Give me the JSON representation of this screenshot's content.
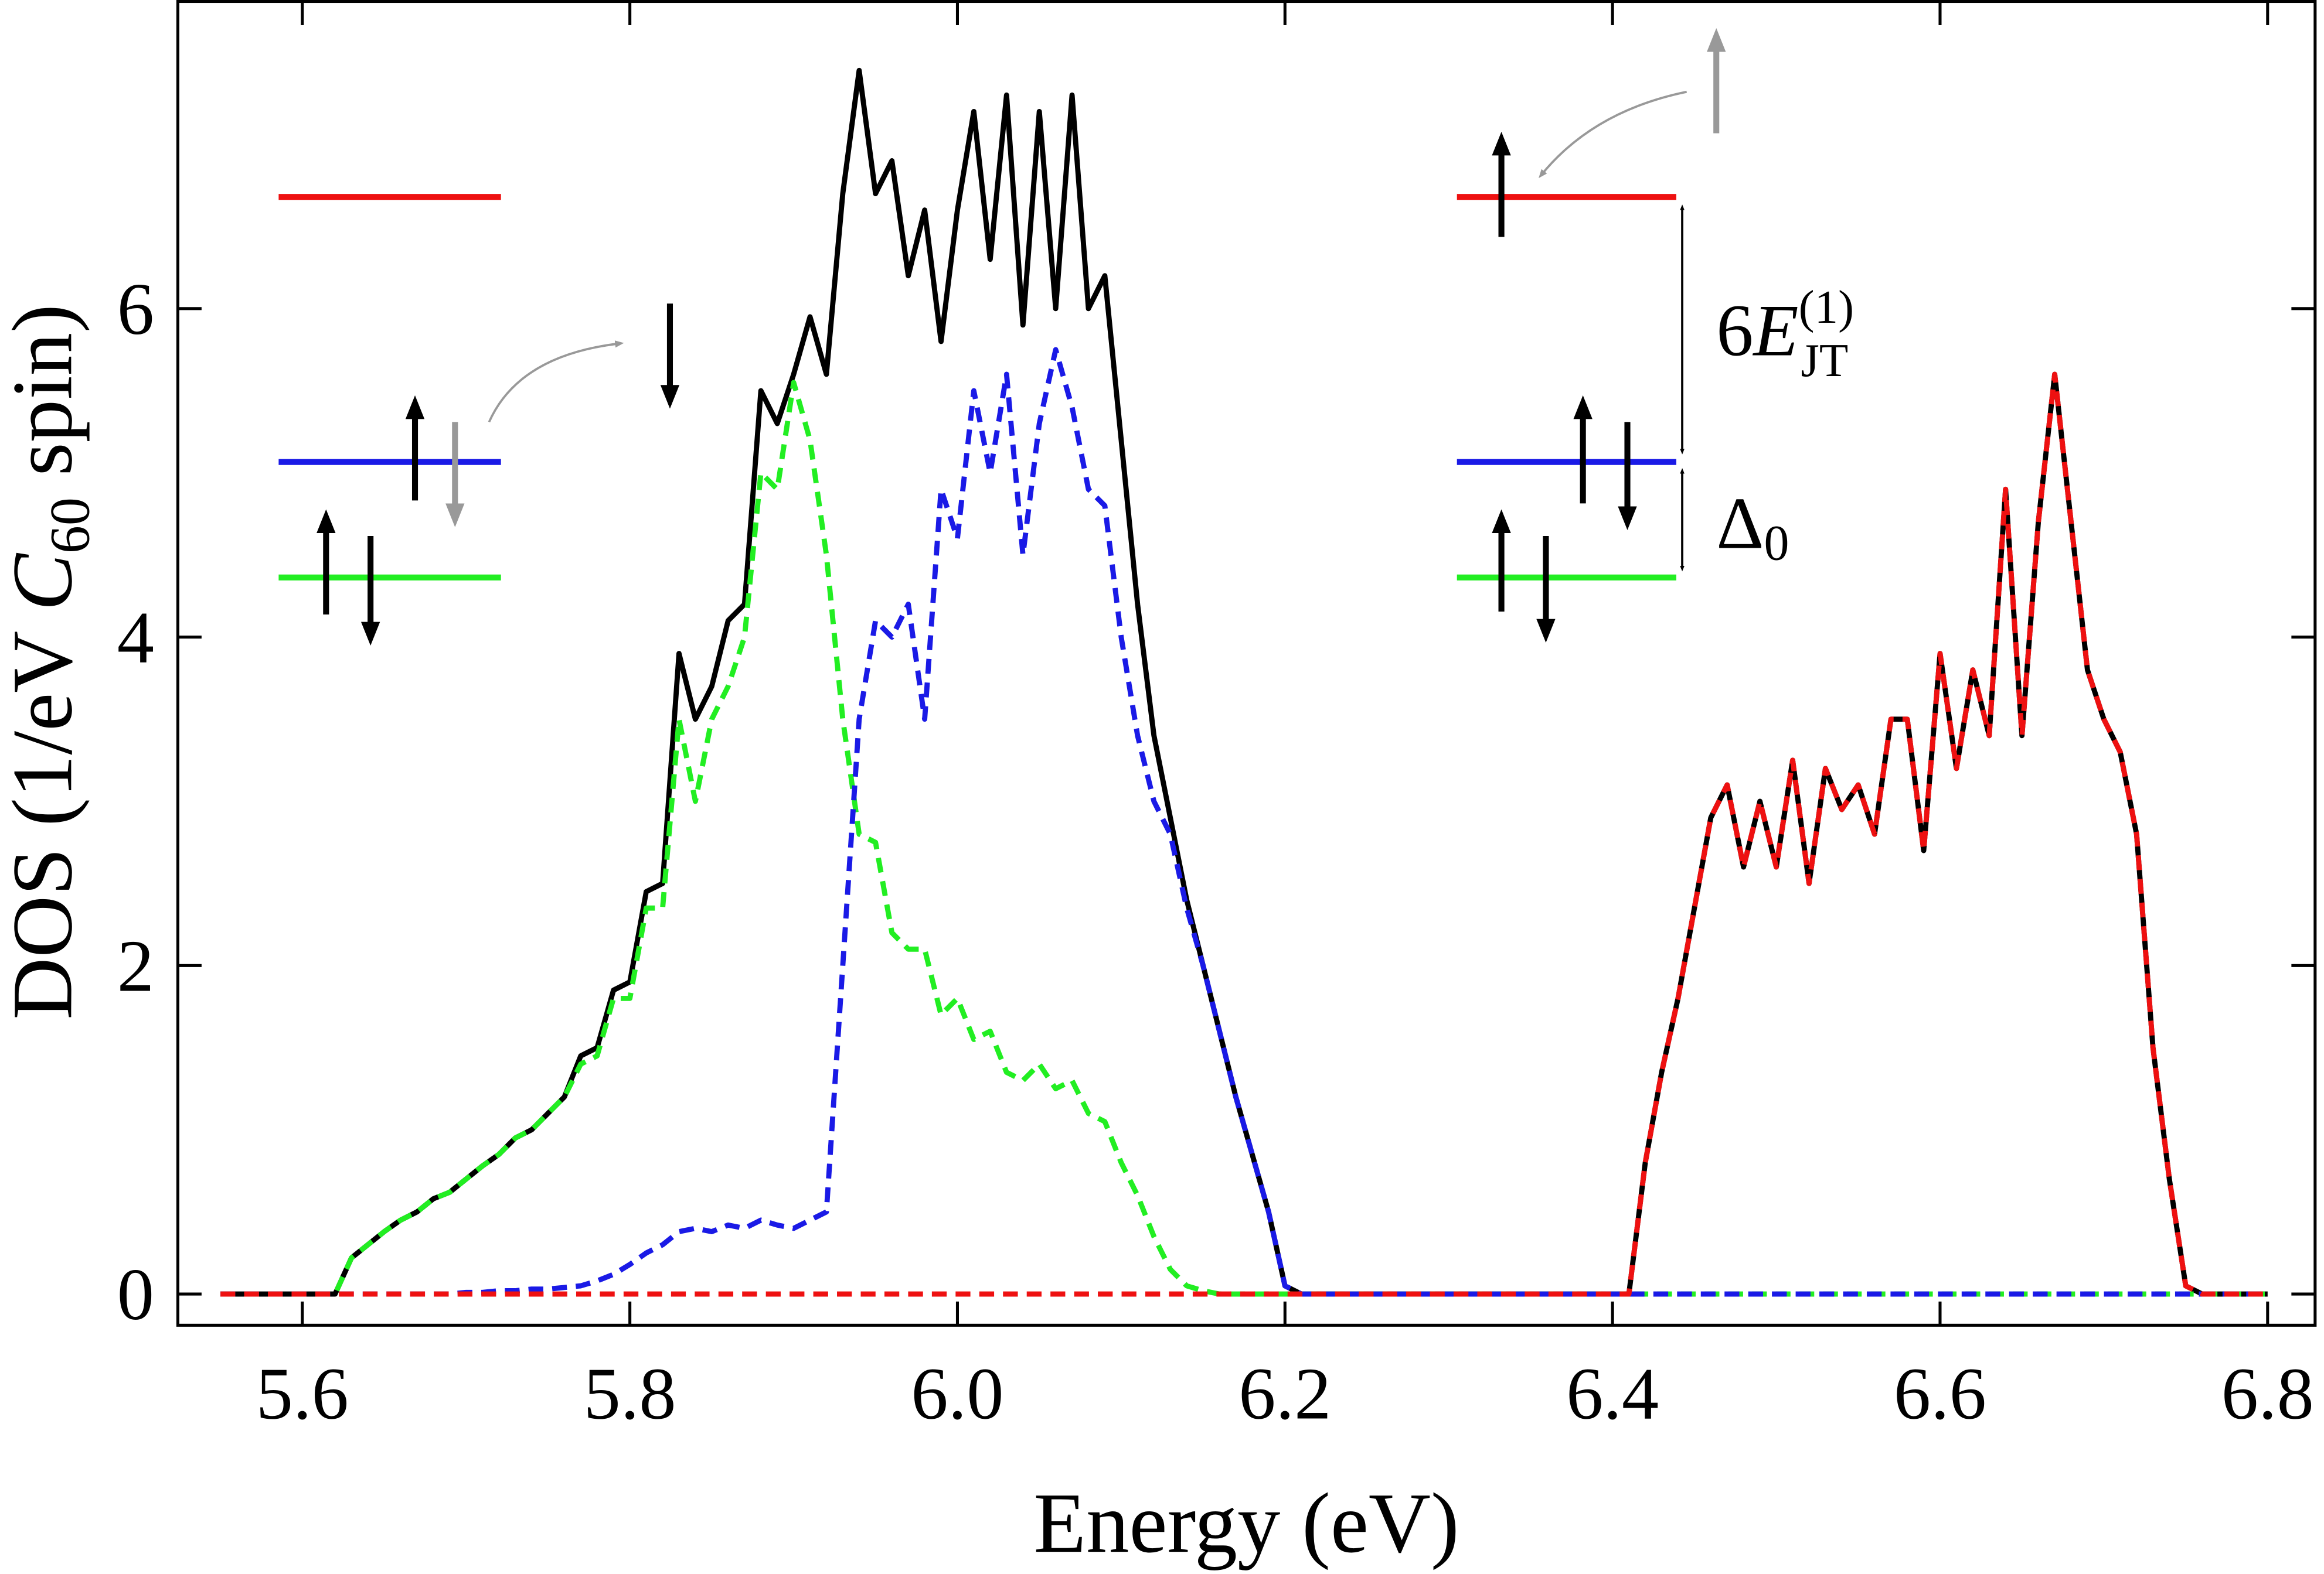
{
  "chart_data": {
    "type": "line",
    "xlabel": "Energy (eV)",
    "ylabel_parts": [
      "DOS (1/eV ",
      "C",
      "60",
      " spin)"
    ],
    "annotations": [
      {
        "parts": [
          "6",
          "E",
          "(1)",
          "JT"
        ]
      },
      {
        "parts": [
          "Δ",
          "0"
        ]
      }
    ],
    "xlim": [
      5.524,
      6.829
    ],
    "ylim": [
      -0.19,
      7.87
    ],
    "xticks": [
      5.6,
      5.8,
      {
        "value": 6,
        "label": "6.0"
      },
      6.2,
      6.4,
      6.6,
      6.8
    ],
    "yticks": [
      0,
      2,
      4,
      6
    ],
    "x": [
      5.55,
      5.56,
      5.57,
      5.58,
      5.59,
      5.6,
      5.61,
      5.62,
      5.63,
      5.64,
      5.65,
      5.66,
      5.67,
      5.68,
      5.69,
      5.7,
      5.71,
      5.72,
      5.73,
      5.74,
      5.75,
      5.76,
      5.77,
      5.78,
      5.79,
      5.8,
      5.81,
      5.82,
      5.83,
      5.84,
      5.85,
      5.86,
      5.87,
      5.88,
      5.89,
      5.9,
      5.91,
      5.92,
      5.93,
      5.94,
      5.95,
      5.96,
      5.97,
      5.98,
      5.99,
      6,
      6.01,
      6.02,
      6.03,
      6.04,
      6.05,
      6.06,
      6.07,
      6.08,
      6.09,
      6.1,
      6.11,
      6.12,
      6.13,
      6.14,
      6.15,
      6.16,
      6.17,
      6.18,
      6.19,
      6.2,
      6.21,
      6.22,
      6.23,
      6.24,
      6.25,
      6.26,
      6.27,
      6.28,
      6.29,
      6.3,
      6.31,
      6.32,
      6.33,
      6.34,
      6.35,
      6.36,
      6.37,
      6.38,
      6.39,
      6.4,
      6.41,
      6.42,
      6.43,
      6.44,
      6.45,
      6.46,
      6.47,
      6.48,
      6.49,
      6.5,
      6.51,
      6.52,
      6.53,
      6.54,
      6.55,
      6.56,
      6.57,
      6.58,
      6.59,
      6.6,
      6.61,
      6.62,
      6.63,
      6.64,
      6.65,
      6.66,
      6.67,
      6.68,
      6.69,
      6.7,
      6.71,
      6.72,
      6.73,
      6.74,
      6.75,
      6.76,
      6.77,
      6.78,
      6.79,
      6.8
    ],
    "series": [
      {
        "color": "#000000",
        "dashed": false,
        "values": [
          0,
          0,
          0,
          0,
          0,
          0,
          0,
          0,
          0.22,
          0.3,
          0.38,
          0.45,
          0.5,
          0.58,
          0.62,
          0.7,
          0.78,
          0.85,
          0.95,
          1.0,
          1.1,
          1.2,
          1.45,
          1.5,
          1.85,
          1.9,
          2.45,
          2.5,
          3.9,
          3.5,
          3.7,
          4.1,
          4.2,
          5.5,
          5.3,
          5.6,
          5.95,
          5.6,
          6.7,
          7.45,
          6.7,
          6.9,
          6.2,
          6.6,
          5.8,
          6.6,
          7.2,
          6.3,
          7.3,
          5.9,
          7.2,
          6.0,
          7.3,
          6.0,
          6.2,
          5.2,
          4.2,
          3.4,
          2.9,
          2.4,
          2.0,
          1.6,
          1.2,
          0.85,
          0.5,
          0.05,
          0,
          0,
          0,
          0,
          0,
          0,
          0,
          0,
          0,
          0,
          0,
          0,
          0,
          0,
          0,
          0,
          0,
          0,
          0,
          0,
          0,
          0.8,
          1.35,
          1.8,
          2.35,
          2.9,
          3.1,
          2.6,
          3.0,
          2.6,
          3.25,
          2.5,
          3.2,
          2.95,
          3.1,
          2.8,
          3.5,
          3.5,
          2.7,
          3.9,
          3.2,
          3.8,
          3.4,
          4.9,
          3.4,
          4.7,
          5.6,
          4.7,
          3.8,
          3.5,
          3.3,
          2.8,
          1.5,
          0.7,
          0.05,
          0,
          0,
          0,
          0,
          0
        ]
      },
      {
        "color": "#22ee22",
        "dashed": true,
        "values": [
          0,
          0,
          0,
          0,
          0,
          0,
          0,
          0,
          0.22,
          0.3,
          0.38,
          0.45,
          0.5,
          0.58,
          0.62,
          0.7,
          0.78,
          0.85,
          0.95,
          1.0,
          1.1,
          1.2,
          1.4,
          1.45,
          1.8,
          1.8,
          2.35,
          2.35,
          3.5,
          3.0,
          3.5,
          3.7,
          4.0,
          5.0,
          4.9,
          5.55,
          5.2,
          4.5,
          3.5,
          2.8,
          2.75,
          2.2,
          2.1,
          2.1,
          1.7,
          1.8,
          1.55,
          1.6,
          1.35,
          1.3,
          1.4,
          1.25,
          1.3,
          1.1,
          1.05,
          0.8,
          0.6,
          0.35,
          0.15,
          0.05,
          0.02,
          0,
          0,
          0,
          0,
          0,
          0,
          0,
          0,
          0,
          0,
          0,
          0,
          0,
          0,
          0,
          0,
          0,
          0,
          0,
          0,
          0,
          0,
          0,
          0,
          0,
          0,
          0,
          0,
          0,
          0,
          0,
          0,
          0,
          0,
          0,
          0,
          0,
          0,
          0,
          0,
          0,
          0,
          0,
          0,
          0,
          0,
          0,
          0,
          0,
          0,
          0,
          0,
          0,
          0,
          0,
          0,
          0,
          0,
          0,
          0,
          0,
          0,
          0,
          0,
          0
        ]
      },
      {
        "color": "#1a1ae6",
        "dashed": true,
        "values": [
          0,
          0,
          0,
          0,
          0,
          0,
          0,
          0,
          0,
          0,
          0,
          0,
          0,
          0,
          0,
          0.01,
          0.01,
          0.02,
          0.02,
          0.03,
          0.03,
          0.04,
          0.05,
          0.08,
          0.12,
          0.18,
          0.25,
          0.3,
          0.38,
          0.4,
          0.38,
          0.42,
          0.4,
          0.45,
          0.42,
          0.4,
          0.45,
          0.5,
          2.0,
          3.5,
          4.1,
          4.0,
          4.2,
          3.5,
          4.9,
          4.6,
          5.5,
          5.0,
          5.6,
          4.5,
          5.3,
          5.75,
          5.4,
          4.9,
          4.8,
          4.0,
          3.4,
          3.0,
          2.8,
          2.35,
          2.0,
          1.6,
          1.2,
          0.85,
          0.5,
          0.05,
          0,
          0,
          0,
          0,
          0,
          0,
          0,
          0,
          0,
          0,
          0,
          0,
          0,
          0,
          0,
          0,
          0,
          0,
          0,
          0,
          0,
          0,
          0,
          0,
          0,
          0,
          0,
          0,
          0,
          0,
          0,
          0,
          0,
          0,
          0,
          0,
          0,
          0,
          0,
          0,
          0,
          0,
          0,
          0,
          0,
          0,
          0,
          0,
          0,
          0,
          0,
          0,
          0,
          0,
          0,
          0,
          0,
          0,
          0,
          0
        ]
      },
      {
        "color": "#ee1111",
        "dashed": true,
        "values": [
          0,
          0,
          0,
          0,
          0,
          0,
          0,
          0,
          0,
          0,
          0,
          0,
          0,
          0,
          0,
          0,
          0,
          0,
          0,
          0,
          0,
          0,
          0,
          0,
          0,
          0,
          0,
          0,
          0,
          0,
          0,
          0,
          0,
          0,
          0,
          0,
          0,
          0,
          0,
          0,
          0,
          0,
          0,
          0,
          0,
          0,
          0,
          0,
          0,
          0,
          0,
          0,
          0,
          0,
          0,
          0,
          0,
          0,
          0,
          0,
          0,
          0,
          0,
          0,
          0,
          0,
          0,
          0,
          0,
          0,
          0,
          0,
          0,
          0,
          0,
          0,
          0,
          0,
          0,
          0,
          0,
          0,
          0,
          0,
          0,
          0,
          0,
          0.8,
          1.35,
          1.8,
          2.35,
          2.9,
          3.1,
          2.6,
          3.0,
          2.6,
          3.25,
          2.5,
          3.2,
          2.95,
          3.1,
          2.8,
          3.5,
          3.5,
          2.7,
          3.9,
          3.2,
          3.8,
          3.4,
          4.9,
          3.4,
          4.7,
          5.6,
          4.7,
          3.8,
          3.5,
          3.3,
          2.8,
          1.5,
          0.7,
          0.05,
          0,
          0,
          0,
          0,
          0
        ]
      }
    ]
  }
}
